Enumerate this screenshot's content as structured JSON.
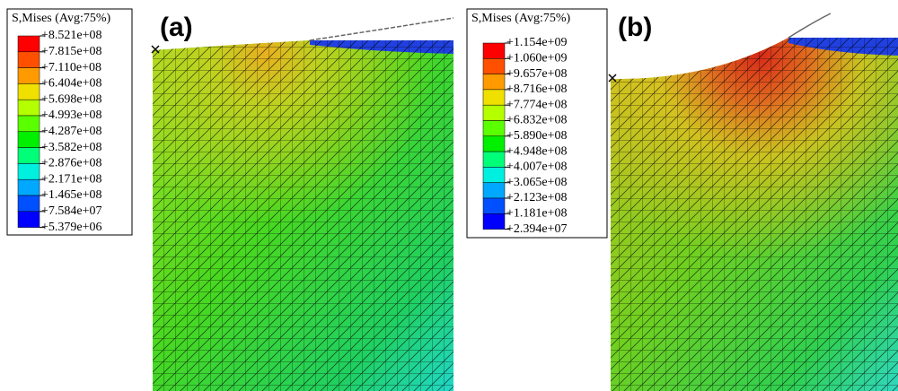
{
  "panels": [
    {
      "label": "(a)",
      "legend": {
        "title": "S,Mises (Avg:75%)",
        "labels": [
          "+8.521e+08",
          "+7.815e+08",
          "+7.110e+08",
          "+6.404e+08",
          "+5.698e+08",
          "+4.993e+08",
          "+4.287e+08",
          "+3.582e+08",
          "+2.876e+08",
          "+2.171e+08",
          "+1.465e+08",
          "+7.584e+07",
          "+5.379e+06"
        ]
      }
    },
    {
      "label": "(b)",
      "legend": {
        "title": "S,Mises (Avg:75%)",
        "labels": [
          "+1.154e+09",
          "+1.060e+09",
          "+9.657e+08",
          "+8.716e+08",
          "+7.774e+08",
          "+6.832e+08",
          "+5.890e+08",
          "+4.948e+08",
          "+4.007e+08",
          "+3.065e+08",
          "+2.123e+08",
          "+1.181e+08",
          "+2.394e+07"
        ]
      }
    }
  ]
}
